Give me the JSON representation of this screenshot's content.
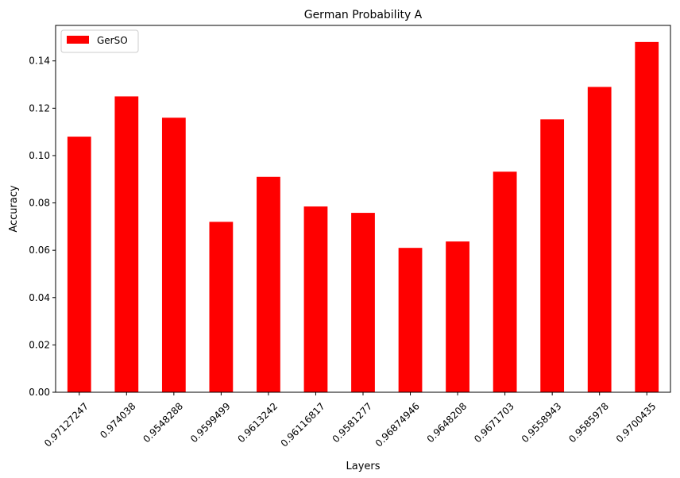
{
  "chart_data": {
    "type": "bar",
    "title": "German Probability A",
    "xlabel": "Layers",
    "ylabel": "Accuracy",
    "categories": [
      "0.97127247",
      "0.974038",
      "0.9548288",
      "0.9599499",
      "0.9613242",
      "0.96116817",
      "0.9581277",
      "0.96874946",
      "0.9648208",
      "0.9671703",
      "0.9558943",
      "0.9585978",
      "0.9700435"
    ],
    "series": [
      {
        "name": "GerSO",
        "color": "#ff0000",
        "values": [
          0.108,
          0.125,
          0.116,
          0.072,
          0.091,
          0.0785,
          0.0758,
          0.061,
          0.0637,
          0.0932,
          0.1153,
          0.129,
          0.148
        ]
      }
    ],
    "ylim": [
      0,
      0.155
    ],
    "yticks": [
      "0.00",
      "0.02",
      "0.04",
      "0.06",
      "0.08",
      "0.10",
      "0.12",
      "0.14"
    ],
    "legend_position": "upper left",
    "grid": false
  }
}
